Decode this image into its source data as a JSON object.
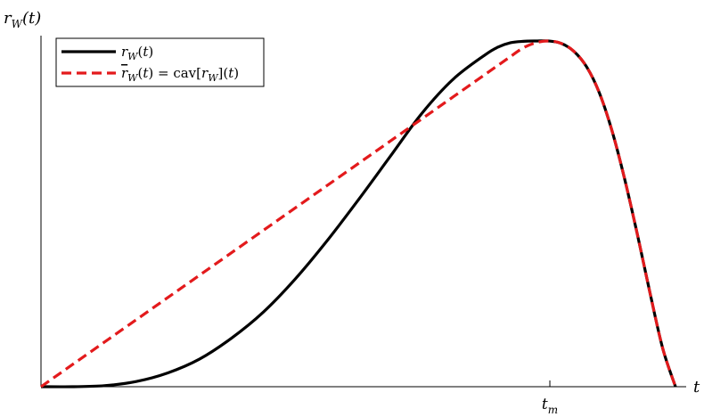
{
  "chart_data": {
    "type": "line",
    "title": "",
    "xlabel": "t",
    "ylabel": "r_W(t)",
    "xlim": [
      0,
      1
    ],
    "ylim": [
      0,
      1
    ],
    "grid": false,
    "legend_position": "top-left",
    "x_ticks": [
      {
        "value": 0.802,
        "label": "t_m"
      }
    ],
    "series": [
      {
        "name": "r_W(t)",
        "style": "solid",
        "color": "#000000",
        "x": [
          0.0,
          0.05,
          0.1,
          0.15,
          0.2,
          0.25,
          0.3,
          0.35,
          0.4,
          0.45,
          0.5,
          0.55,
          0.6,
          0.65,
          0.7,
          0.72,
          0.74,
          0.76,
          0.78,
          0.8,
          0.82,
          0.84,
          0.86,
          0.88,
          0.9,
          0.92,
          0.94,
          0.96,
          0.98,
          1.0
        ],
        "y": [
          0.0,
          0.0,
          0.003,
          0.015,
          0.04,
          0.08,
          0.14,
          0.215,
          0.31,
          0.42,
          0.54,
          0.665,
          0.79,
          0.89,
          0.96,
          0.982,
          0.995,
          0.999,
          1.0,
          1.0,
          0.993,
          0.97,
          0.925,
          0.85,
          0.74,
          0.6,
          0.44,
          0.27,
          0.11,
          0.0
        ]
      },
      {
        "name": "̅r_W(t) = cav[r_W](t)",
        "style": "dashed",
        "color": "#e31a1c",
        "x": [
          0.0,
          0.74,
          0.76,
          0.78,
          0.8,
          0.82,
          0.84,
          0.86,
          0.88,
          0.9,
          0.92,
          0.94,
          0.96,
          0.98,
          1.0
        ],
        "y": [
          0.0,
          0.955,
          0.98,
          0.995,
          1.0,
          0.993,
          0.97,
          0.925,
          0.85,
          0.74,
          0.6,
          0.44,
          0.27,
          0.11,
          0.0
        ]
      }
    ]
  }
}
